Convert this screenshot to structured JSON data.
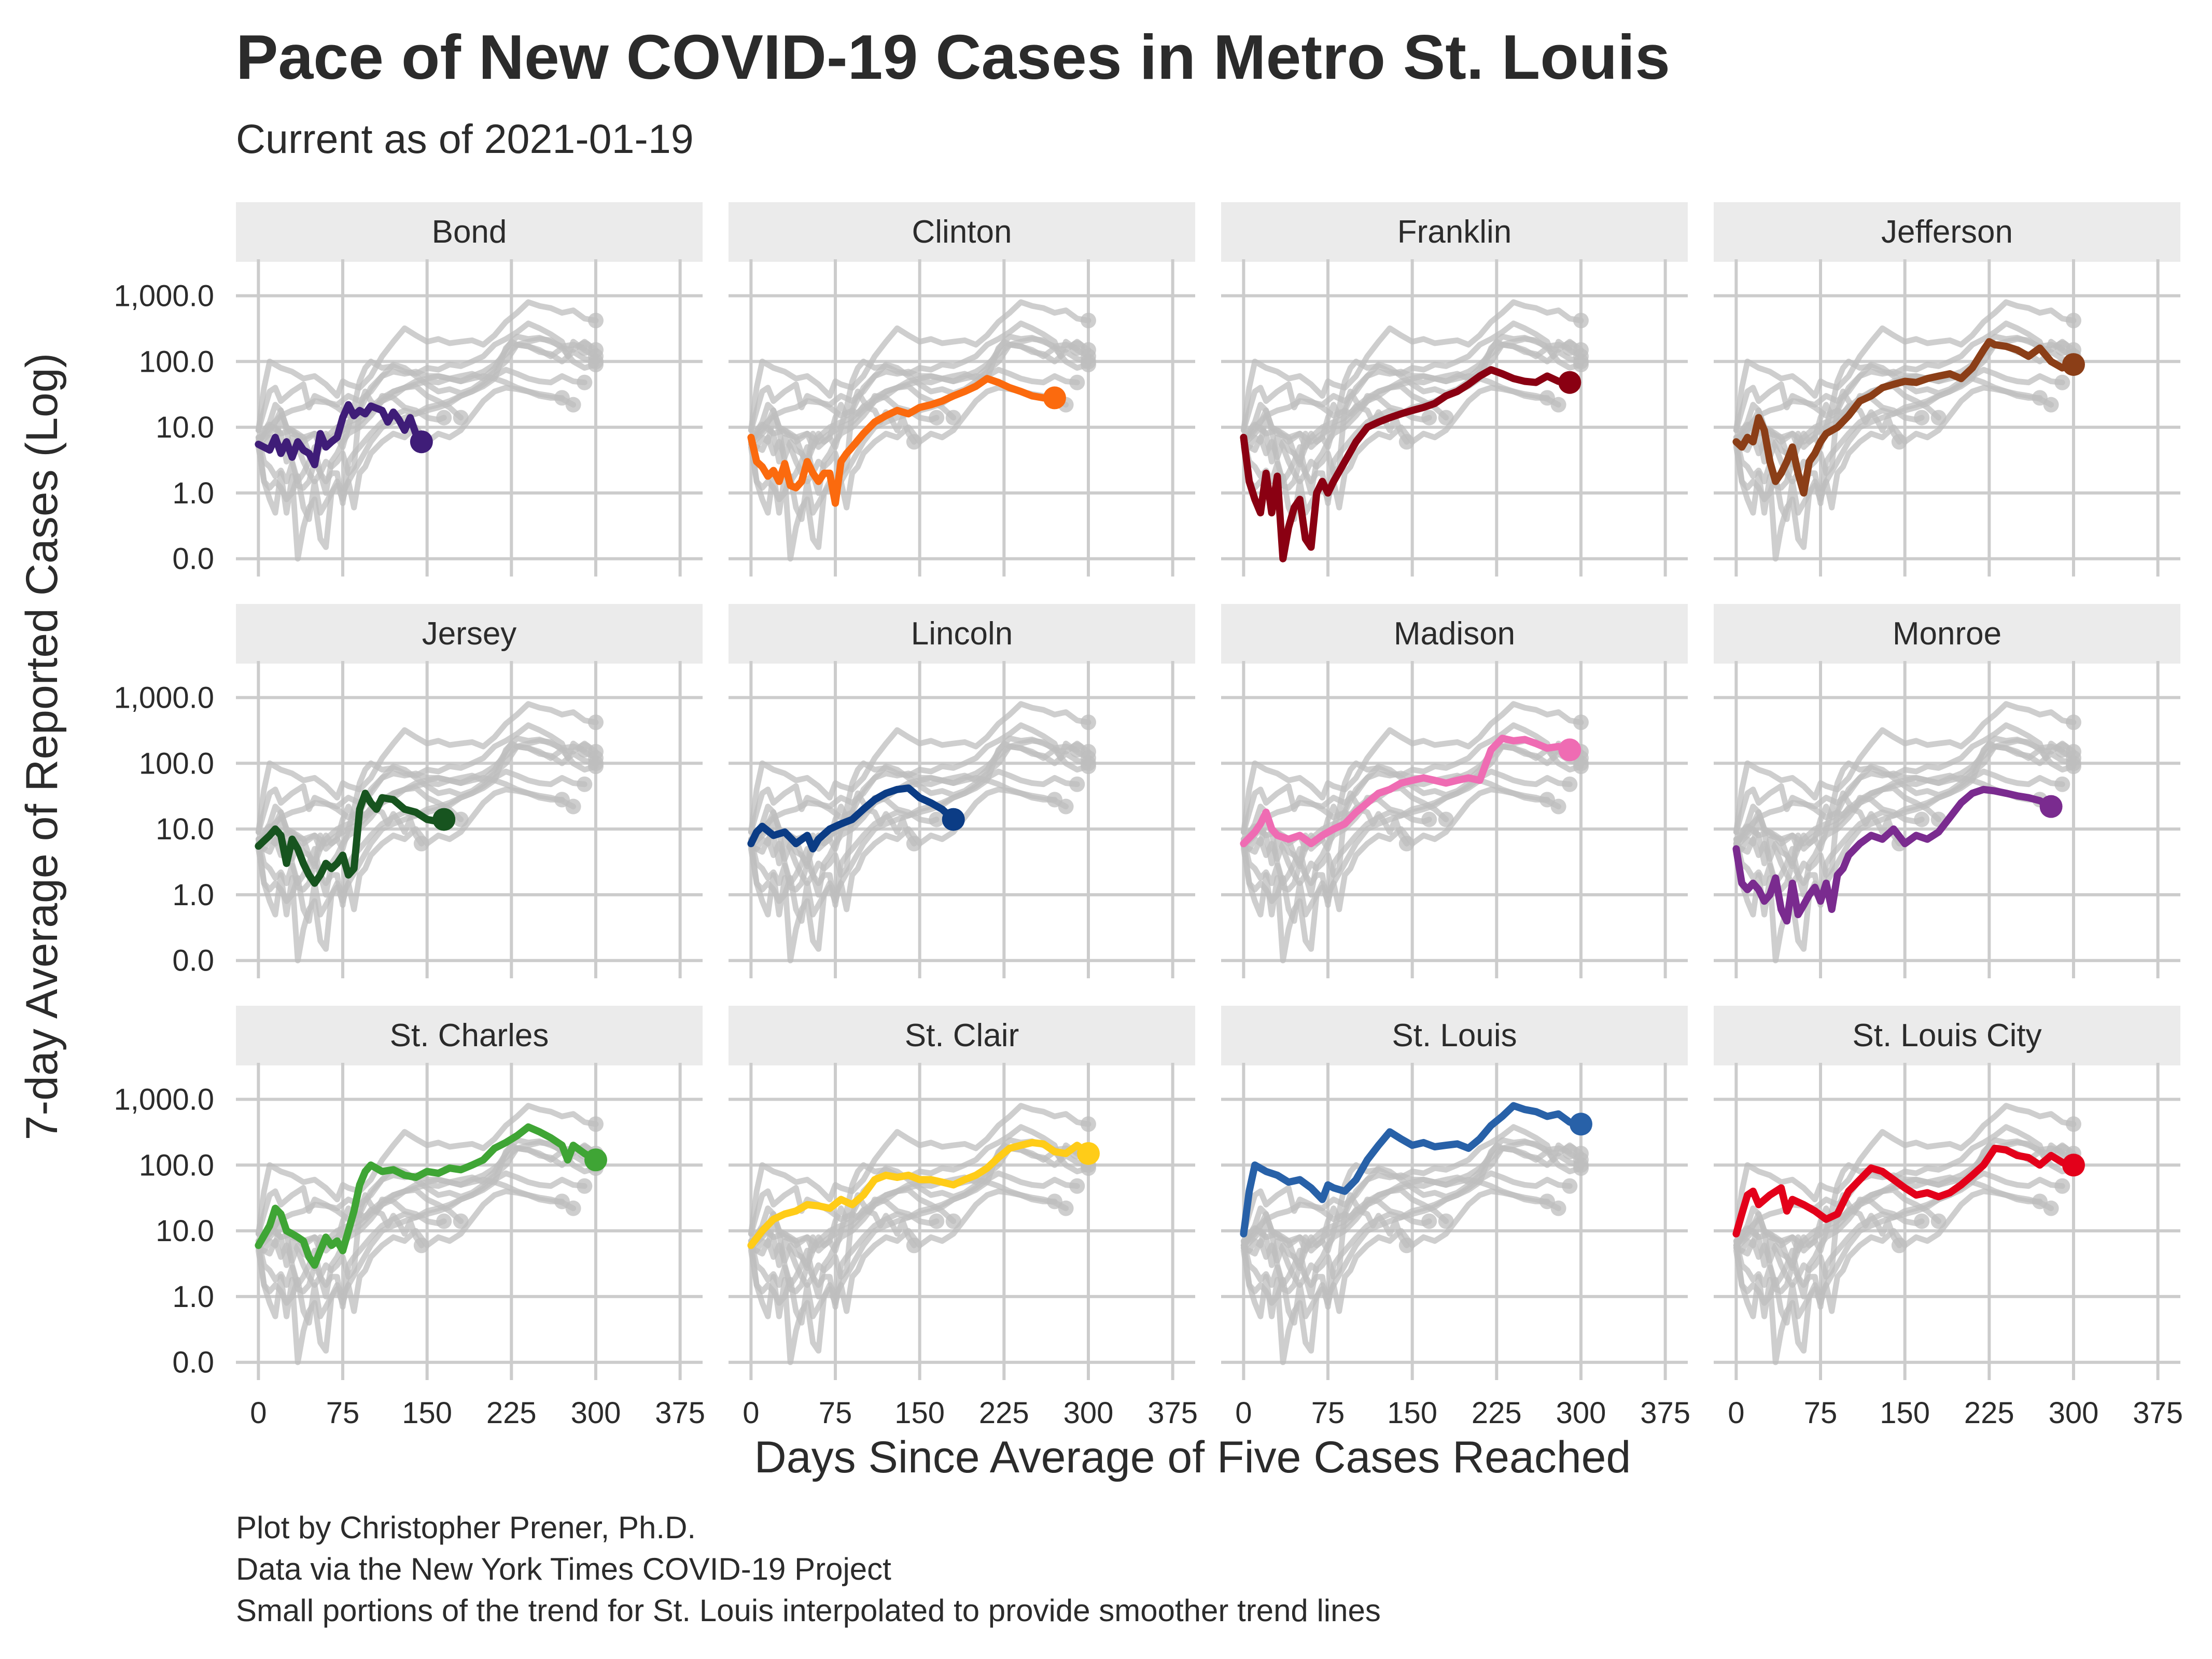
{
  "title": "Pace of New COVID-19 Cases in Metro St. Louis",
  "subtitle": "Current as of 2021-01-19",
  "captions": [
    "Plot by Christopher Prener, Ph.D.",
    "Data via the New York Times COVID-19 Project",
    "Small portions of the trend for St. Louis interpolated to provide smoother trend lines"
  ],
  "colors": {
    "background_lines": "#bdbdbd",
    "strip_bg": "#ebebeb",
    "grid": "#cccccc",
    "Bond": "#3f1d78",
    "Clinton": "#fb6a0e",
    "Franklin": "#8a0012",
    "Jefferson": "#8b3e17",
    "Jersey": "#17541f",
    "Lincoln": "#0b3c85",
    "Madison": "#ef6cb3",
    "Monroe": "#7a2b8f",
    "St. Charles": "#3fa535",
    "St. Clair": "#ffcc18",
    "St. Louis": "#2861a8",
    "St. Louis City": "#e3001a"
  },
  "chart_data": {
    "type": "line",
    "title": "Pace of New COVID-19 Cases in Metro St. Louis",
    "subtitle": "Current as of 2021-01-19",
    "xlabel": "Days Since Average of Five Cases Reached",
    "ylabel": "7-day Average of Reported Cases (Log)",
    "x_ticks": [
      0,
      75,
      150,
      225,
      300,
      375
    ],
    "x_tick_labels": [
      "0",
      "75",
      "150",
      "225",
      "300",
      "375"
    ],
    "xlim": [
      -20,
      395
    ],
    "y_scale": "log",
    "y_ticks": [
      0.1,
      1,
      10,
      100,
      1000
    ],
    "y_tick_labels": [
      "0.0",
      "1.0",
      "10.0",
      "100.0",
      "1,000.0"
    ],
    "ylim": [
      0.08,
      3000
    ],
    "grid": true,
    "layout": "facets 4 columns x 3 rows; every panel shows all counties in grey with the named county highlighted",
    "series": [
      {
        "name": "Bond",
        "x": [
          0,
          10,
          15,
          20,
          25,
          30,
          35,
          40,
          45,
          50,
          55,
          60,
          65,
          70,
          75,
          80,
          85,
          90,
          95,
          100,
          110,
          115,
          120,
          125,
          130,
          135,
          140,
          145
        ],
        "y": [
          5.5,
          4.5,
          7,
          4,
          6,
          3.5,
          6,
          4.5,
          4,
          2.7,
          8,
          5,
          6,
          7,
          14,
          22,
          15,
          18,
          16,
          21,
          18,
          12,
          17,
          13,
          9,
          14,
          8,
          6
        ]
      },
      {
        "name": "Clinton",
        "x": [
          0,
          5,
          10,
          15,
          20,
          25,
          30,
          35,
          40,
          45,
          50,
          55,
          60,
          65,
          70,
          75,
          80,
          85,
          90,
          100,
          110,
          120,
          130,
          140,
          150,
          160,
          170,
          180,
          190,
          200,
          210,
          220,
          230,
          240,
          250,
          260,
          270
        ],
        "y": [
          7,
          3,
          2.5,
          1.8,
          2.2,
          1.5,
          2.8,
          1.3,
          1.2,
          1.5,
          3,
          2,
          1.5,
          2,
          2,
          0.7,
          3,
          4,
          5,
          8,
          12,
          15,
          18,
          16,
          20,
          22,
          25,
          30,
          35,
          42,
          55,
          48,
          40,
          35,
          30,
          28,
          28
        ]
      },
      {
        "name": "Franklin",
        "x": [
          0,
          5,
          10,
          15,
          20,
          25,
          30,
          35,
          40,
          45,
          50,
          55,
          60,
          65,
          70,
          75,
          80,
          90,
          100,
          110,
          120,
          130,
          140,
          150,
          160,
          170,
          180,
          190,
          200,
          210,
          220,
          230,
          240,
          250,
          260,
          270,
          280,
          290
        ],
        "y": [
          7,
          1.5,
          0.8,
          0.5,
          2,
          0.5,
          1.8,
          0.1,
          0.3,
          0.6,
          0.8,
          0.2,
          0.15,
          1,
          1.5,
          1,
          1.5,
          3,
          6,
          10,
          12,
          14,
          16,
          18,
          20,
          23,
          30,
          35,
          45,
          60,
          75,
          65,
          55,
          50,
          48,
          60,
          50,
          48
        ]
      },
      {
        "name": "Jefferson",
        "x": [
          0,
          5,
          10,
          15,
          20,
          25,
          30,
          35,
          40,
          45,
          50,
          55,
          60,
          65,
          70,
          75,
          80,
          90,
          100,
          110,
          120,
          130,
          140,
          150,
          160,
          170,
          180,
          190,
          200,
          210,
          220,
          225,
          230,
          240,
          250,
          260,
          270,
          280,
          290,
          300
        ],
        "y": [
          6,
          5,
          7,
          6,
          14,
          9,
          3,
          1.5,
          2,
          3,
          5,
          2,
          1,
          3,
          4,
          6,
          8,
          10,
          15,
          25,
          30,
          40,
          45,
          50,
          48,
          55,
          60,
          65,
          55,
          80,
          150,
          200,
          180,
          170,
          150,
          120,
          160,
          100,
          80,
          90
        ]
      },
      {
        "name": "Jersey",
        "x": [
          0,
          10,
          15,
          20,
          25,
          30,
          35,
          40,
          45,
          50,
          55,
          60,
          65,
          70,
          75,
          80,
          85,
          90,
          95,
          100,
          105,
          110,
          120,
          130,
          140,
          150,
          160,
          165
        ],
        "y": [
          5.5,
          8,
          10,
          8,
          3,
          7,
          5,
          3,
          2,
          1.5,
          2,
          3,
          2.5,
          3,
          4,
          2,
          2.5,
          20,
          35,
          25,
          20,
          30,
          28,
          20,
          18,
          14,
          13,
          14
        ]
      },
      {
        "name": "Lincoln",
        "x": [
          0,
          5,
          10,
          20,
          30,
          40,
          50,
          55,
          60,
          70,
          80,
          90,
          100,
          110,
          120,
          130,
          140,
          150,
          160,
          170,
          180
        ],
        "y": [
          6,
          9,
          11,
          8,
          9,
          6,
          8,
          5,
          7,
          10,
          12,
          14,
          20,
          28,
          35,
          40,
          42,
          30,
          25,
          20,
          14
        ]
      },
      {
        "name": "Madison",
        "x": [
          0,
          10,
          15,
          20,
          25,
          30,
          40,
          50,
          60,
          70,
          80,
          90,
          100,
          110,
          120,
          130,
          140,
          150,
          160,
          170,
          180,
          190,
          200,
          210,
          220,
          230,
          240,
          250,
          260,
          270,
          280,
          290
        ],
        "y": [
          6,
          9,
          12,
          18,
          10,
          8,
          7,
          8,
          6,
          8,
          10,
          12,
          18,
          25,
          35,
          40,
          50,
          55,
          60,
          55,
          50,
          55,
          60,
          55,
          160,
          240,
          220,
          230,
          200,
          170,
          180,
          160
        ]
      },
      {
        "name": "Monroe",
        "x": [
          0,
          5,
          10,
          15,
          20,
          25,
          30,
          35,
          40,
          45,
          50,
          55,
          60,
          65,
          70,
          75,
          80,
          85,
          90,
          95,
          100,
          110,
          120,
          130,
          140,
          150,
          160,
          170,
          180,
          190,
          200,
          210,
          220,
          230,
          240,
          250,
          260,
          270,
          280
        ],
        "y": [
          5,
          1.5,
          1.2,
          1.5,
          1.2,
          0.8,
          1,
          1.8,
          0.6,
          0.4,
          1.5,
          0.5,
          0.7,
          1,
          1.3,
          0.8,
          1.5,
          0.6,
          2,
          2.5,
          4,
          6,
          8,
          7,
          10,
          6,
          8,
          7,
          9,
          15,
          25,
          35,
          40,
          38,
          35,
          32,
          30,
          27,
          22
        ]
      },
      {
        "name": "St. Charles",
        "x": [
          0,
          10,
          15,
          20,
          25,
          30,
          35,
          40,
          45,
          50,
          55,
          60,
          65,
          70,
          75,
          80,
          85,
          90,
          95,
          100,
          110,
          120,
          130,
          140,
          150,
          160,
          170,
          180,
          190,
          200,
          210,
          220,
          230,
          240,
          250,
          260,
          270,
          275,
          280,
          290,
          300
        ],
        "y": [
          6,
          12,
          22,
          18,
          10,
          9,
          8,
          7,
          4,
          3,
          5,
          8,
          6,
          7,
          5,
          10,
          20,
          50,
          80,
          100,
          80,
          85,
          70,
          65,
          80,
          75,
          90,
          85,
          100,
          120,
          180,
          220,
          280,
          380,
          320,
          260,
          200,
          120,
          200,
          150,
          120
        ]
      },
      {
        "name": "St. Clair",
        "x": [
          0,
          10,
          20,
          30,
          40,
          50,
          60,
          70,
          80,
          90,
          100,
          110,
          120,
          130,
          140,
          150,
          160,
          170,
          180,
          190,
          200,
          210,
          220,
          230,
          240,
          250,
          260,
          270,
          280,
          290,
          300
        ],
        "y": [
          6,
          10,
          15,
          18,
          20,
          25,
          24,
          22,
          30,
          25,
          35,
          60,
          70,
          65,
          70,
          60,
          60,
          55,
          50,
          60,
          70,
          90,
          130,
          180,
          200,
          220,
          210,
          160,
          150,
          200,
          150
        ]
      },
      {
        "name": "St. Louis",
        "x": [
          0,
          5,
          10,
          20,
          30,
          40,
          50,
          60,
          70,
          75,
          80,
          90,
          100,
          110,
          120,
          130,
          140,
          150,
          160,
          170,
          180,
          190,
          200,
          210,
          220,
          230,
          240,
          250,
          260,
          270,
          280,
          290,
          300
        ],
        "y": [
          9,
          40,
          100,
          80,
          70,
          55,
          60,
          45,
          30,
          50,
          45,
          40,
          60,
          120,
          200,
          320,
          250,
          200,
          220,
          190,
          200,
          210,
          180,
          250,
          400,
          550,
          800,
          700,
          650,
          550,
          600,
          450,
          420
        ]
      },
      {
        "name": "St. Louis City",
        "x": [
          0,
          5,
          10,
          15,
          20,
          30,
          40,
          45,
          50,
          60,
          70,
          80,
          90,
          100,
          110,
          120,
          130,
          140,
          150,
          160,
          170,
          180,
          190,
          200,
          210,
          220,
          230,
          240,
          250,
          260,
          270,
          280,
          290,
          300
        ],
        "y": [
          9,
          18,
          35,
          40,
          25,
          35,
          45,
          20,
          30,
          25,
          20,
          15,
          18,
          40,
          60,
          90,
          80,
          60,
          45,
          35,
          38,
          33,
          38,
          50,
          70,
          100,
          180,
          170,
          140,
          130,
          100,
          140,
          110,
          100
        ]
      }
    ]
  }
}
